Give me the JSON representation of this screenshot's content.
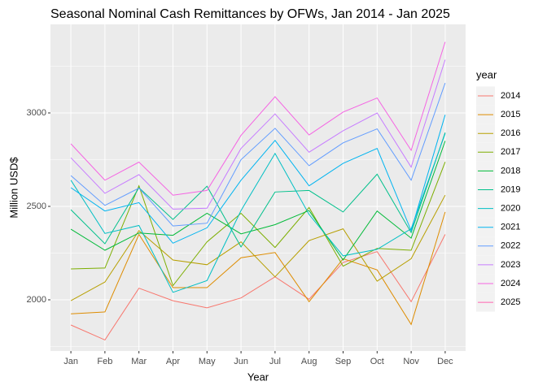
{
  "chart_data": {
    "type": "line",
    "title": "Seasonal Nominal Cash Remittances by OFWs, Jan 2014 - Jan 2025",
    "x_label": "Year",
    "y_label": "Million USD$",
    "legend_title": "year",
    "legend_position": "right",
    "grid": true,
    "categories": [
      "Jan",
      "Feb",
      "Mar",
      "Apr",
      "May",
      "Jun",
      "Jul",
      "Aug",
      "Sep",
      "Oct",
      "Nov",
      "Dec"
    ],
    "ylim": [
      1726,
      3474
    ],
    "yticks": [
      2000,
      2500,
      3000
    ],
    "series": [
      {
        "name": "2014",
        "color": "#F8766D",
        "values": [
          1865,
          1785,
          2062,
          1995,
          1957,
          2010,
          2123,
          2003,
          2200,
          2258,
          1990,
          2350
        ]
      },
      {
        "name": "2015",
        "color": "#DE8C00",
        "values": [
          1925,
          1935,
          2350,
          2065,
          2065,
          2225,
          2253,
          1990,
          2220,
          2160,
          1868,
          2470
        ]
      },
      {
        "name": "2016",
        "color": "#B79F00",
        "values": [
          1995,
          2095,
          2370,
          2213,
          2188,
          2310,
          2123,
          2317,
          2380,
          2100,
          2220,
          2560
        ]
      },
      {
        "name": "2017",
        "color": "#7CAE00",
        "values": [
          2165,
          2170,
          2610,
          2076,
          2310,
          2463,
          2280,
          2494,
          2180,
          2275,
          2265,
          2738
        ]
      },
      {
        "name": "2018",
        "color": "#00BA38",
        "values": [
          2378,
          2265,
          2358,
          2345,
          2463,
          2353,
          2402,
          2478,
          2213,
          2475,
          2330,
          2850
        ]
      },
      {
        "name": "2019",
        "color": "#00C08B",
        "values": [
          2482,
          2300,
          2600,
          2430,
          2608,
          2283,
          2577,
          2585,
          2470,
          2672,
          2360,
          2895
        ]
      },
      {
        "name": "2020",
        "color": "#00BFC4",
        "values": [
          2640,
          2355,
          2398,
          2040,
          2103,
          2478,
          2783,
          2457,
          2235,
          2270,
          2380,
          2890
        ]
      },
      {
        "name": "2021",
        "color": "#00B4F0",
        "values": [
          2600,
          2475,
          2520,
          2303,
          2385,
          2640,
          2853,
          2610,
          2730,
          2810,
          2370,
          2990
        ]
      },
      {
        "name": "2022",
        "color": "#619CFF",
        "values": [
          2665,
          2505,
          2598,
          2395,
          2410,
          2750,
          2918,
          2718,
          2840,
          2915,
          2640,
          3160
        ]
      },
      {
        "name": "2023",
        "color": "#C77CFF",
        "values": [
          2760,
          2570,
          2670,
          2485,
          2490,
          2810,
          2995,
          2790,
          2905,
          3000,
          2710,
          3285
        ]
      },
      {
        "name": "2024",
        "color": "#F564E3",
        "values": [
          2835,
          2640,
          2737,
          2560,
          2585,
          2880,
          3087,
          2882,
          3005,
          3080,
          2800,
          3380
        ]
      },
      {
        "name": "2025",
        "color": "#FF64B0",
        "values": [
          null,
          null,
          null,
          null,
          null,
          null,
          null,
          null,
          null,
          null,
          null,
          null
        ]
      }
    ]
  }
}
